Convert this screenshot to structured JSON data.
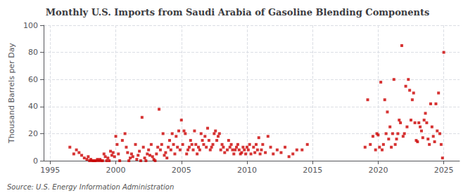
{
  "chart_data": {
    "type": "scatter",
    "title": "Monthly U.S. Imports from Saudi Arabia of Gasoline Blending Components",
    "ylabel": "Thousand Barrels per Day",
    "annotations": [
      "Source: U.S. Energy Information Administration"
    ],
    "xlim": [
      1994.5,
      2026.2
    ],
    "ylim": [
      0,
      100
    ],
    "xticks": [
      1995,
      2000,
      2005,
      2010,
      2015,
      2020,
      2025
    ],
    "yticks": [
      0,
      20,
      40,
      60,
      80,
      100
    ],
    "grid": true,
    "color": "#cc0000",
    "marker": "square",
    "x": [
      1996.5,
      1996.8,
      1997.0,
      1997.2,
      1997.4,
      1997.6,
      1997.8,
      1997.9,
      1998.0,
      1998.1,
      1998.2,
      1998.3,
      1998.4,
      1998.5,
      1998.6,
      1998.7,
      1998.8,
      1998.9,
      1999.0,
      1999.1,
      1999.2,
      1999.3,
      1999.4,
      1999.5,
      1999.6,
      1999.7,
      1999.8,
      1999.9,
      2000.0,
      2000.1,
      2000.2,
      2000.3,
      2000.5,
      2000.7,
      2000.8,
      2000.9,
      2001.0,
      2001.1,
      2001.2,
      2001.3,
      2001.5,
      2001.6,
      2001.7,
      2001.8,
      2001.9,
      2002.0,
      2002.1,
      2002.2,
      2002.3,
      2002.4,
      2002.5,
      2002.6,
      2002.7,
      2002.8,
      2002.9,
      2003.0,
      2003.1,
      2003.2,
      2003.3,
      2003.4,
      2003.5,
      2003.6,
      2003.7,
      2003.8,
      2003.9,
      2004.0,
      2004.1,
      2004.2,
      2004.3,
      2004.4,
      2004.5,
      2004.6,
      2004.7,
      2004.8,
      2004.9,
      2005.0,
      2005.1,
      2005.2,
      2005.3,
      2005.4,
      2005.5,
      2005.6,
      2005.7,
      2005.8,
      2005.9,
      2006.0,
      2006.1,
      2006.2,
      2006.3,
      2006.4,
      2006.5,
      2006.6,
      2006.7,
      2006.8,
      2006.9,
      2007.0,
      2007.1,
      2007.2,
      2007.3,
      2007.4,
      2007.5,
      2007.6,
      2007.7,
      2007.8,
      2007.9,
      2008.0,
      2008.1,
      2008.2,
      2008.3,
      2008.5,
      2008.6,
      2008.7,
      2008.8,
      2008.9,
      2009.0,
      2009.1,
      2009.2,
      2009.3,
      2009.4,
      2009.5,
      2009.6,
      2009.7,
      2009.8,
      2009.9,
      2010.0,
      2010.1,
      2010.2,
      2010.3,
      2010.5,
      2010.6,
      2010.7,
      2010.8,
      2010.9,
      2011.0,
      2011.1,
      2011.2,
      2011.4,
      2011.6,
      2011.8,
      2012.0,
      2012.3,
      2012.6,
      2012.9,
      2013.2,
      2013.5,
      2013.8,
      2014.2,
      2014.6,
      2019.0,
      2019.2,
      2019.4,
      2019.6,
      2019.8,
      2019.9,
      2020.0,
      2020.1,
      2020.2,
      2020.3,
      2020.4,
      2020.5,
      2020.6,
      2020.7,
      2020.8,
      2020.9,
      2021.0,
      2021.1,
      2021.2,
      2021.3,
      2021.4,
      2021.5,
      2021.6,
      2021.7,
      2021.8,
      2021.9,
      2022.0,
      2022.1,
      2022.2,
      2022.3,
      2022.4,
      2022.5,
      2022.6,
      2022.7,
      2022.8,
      2022.9,
      2023.0,
      2023.1,
      2023.2,
      2023.3,
      2023.4,
      2023.5,
      2023.6,
      2023.7,
      2023.8,
      2023.9,
      2024.0,
      2024.1,
      2024.2,
      2024.3,
      2024.4,
      2024.5,
      2024.6,
      2024.7,
      2024.8,
      2024.9,
      2025.0
    ],
    "values": [
      10,
      5,
      8,
      6,
      4,
      2,
      1,
      3,
      0,
      1,
      0,
      0,
      0,
      0,
      1,
      0,
      1,
      0,
      0,
      5,
      3,
      0,
      2,
      0,
      7,
      4,
      6,
      3,
      18,
      12,
      5,
      0,
      15,
      20,
      10,
      6,
      0,
      2,
      5,
      3,
      12,
      1,
      4,
      7,
      0,
      32,
      10,
      2,
      0,
      5,
      8,
      4,
      12,
      3,
      1,
      0,
      5,
      10,
      38,
      8,
      12,
      20,
      4,
      6,
      2,
      10,
      15,
      8,
      20,
      12,
      5,
      18,
      10,
      22,
      8,
      30,
      12,
      22,
      20,
      5,
      8,
      10,
      15,
      12,
      8,
      22,
      12,
      5,
      10,
      8,
      20,
      15,
      12,
      18,
      10,
      24,
      15,
      8,
      10,
      12,
      20,
      22,
      15,
      18,
      20,
      8,
      12,
      10,
      6,
      8,
      15,
      10,
      12,
      8,
      5,
      8,
      10,
      12,
      8,
      5,
      6,
      10,
      8,
      5,
      10,
      8,
      12,
      5,
      10,
      6,
      12,
      8,
      17,
      5,
      8,
      12,
      6,
      18,
      10,
      5,
      8,
      6,
      10,
      3,
      5,
      8,
      8,
      12,
      10,
      45,
      12,
      18,
      8,
      20,
      19,
      10,
      58,
      8,
      12,
      45,
      20,
      36,
      16,
      25,
      10,
      20,
      60,
      12,
      16,
      20,
      30,
      28,
      85,
      18,
      20,
      55,
      25,
      60,
      52,
      30,
      45,
      50,
      28,
      15,
      14,
      28,
      25,
      22,
      17,
      30,
      35,
      28,
      16,
      12,
      42,
      25,
      18,
      14,
      42,
      22,
      50,
      20,
      12,
      2,
      80
    ]
  }
}
